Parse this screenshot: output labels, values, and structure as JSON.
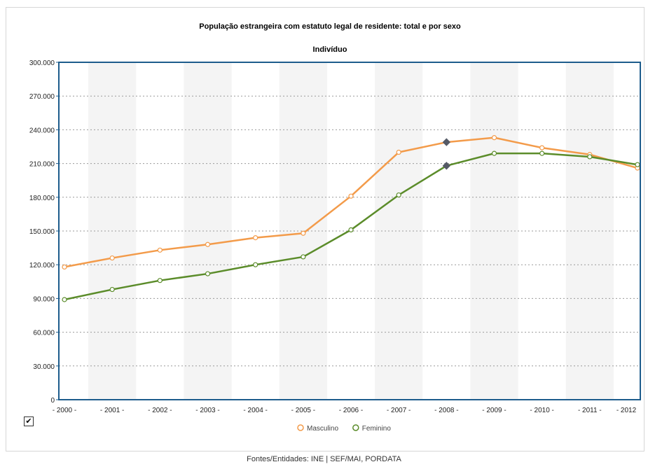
{
  "footer": "Fontes/Entidades: INE | SEF/MAI, PORDATA",
  "checkbox": {
    "checked": true,
    "glyph": "✔"
  },
  "chart_data": {
    "type": "line",
    "title": "População estrangeira com estatuto legal de residente: total e por sexo",
    "subtitle": "Indivíduo",
    "categories": [
      "- 2000 -",
      "- 2001 -",
      "- 2002 -",
      "- 2003 -",
      "- 2004 -",
      "- 2005 -",
      "- 2006 -",
      "- 2007 -",
      "- 2008 -",
      "- 2009 -",
      "- 2010 -",
      "- 2011 -",
      "- 2012"
    ],
    "yticks": [
      "0",
      "30.000",
      "60.000",
      "90.000",
      "120.000",
      "150.000",
      "180.000",
      "210.000",
      "240.000",
      "270.000",
      "300.000"
    ],
    "ylim": [
      0,
      300000
    ],
    "grid": true,
    "legend_position": "bottom-center",
    "series": [
      {
        "name": "Masculino",
        "color": "#f39b4a",
        "values": [
          118000,
          126000,
          133000,
          138000,
          144000,
          148000,
          181000,
          220000,
          229000,
          233000,
          224000,
          218000,
          206000
        ]
      },
      {
        "name": "Feminino",
        "color": "#5b8c2a",
        "values": [
          89000,
          98000,
          106000,
          112000,
          120000,
          127000,
          151000,
          182000,
          208000,
          219000,
          219000,
          216000,
          209000
        ]
      }
    ],
    "highlighted_points": {
      "category": "- 2008 -",
      "marker": "diamond",
      "color": "#555a66"
    }
  }
}
